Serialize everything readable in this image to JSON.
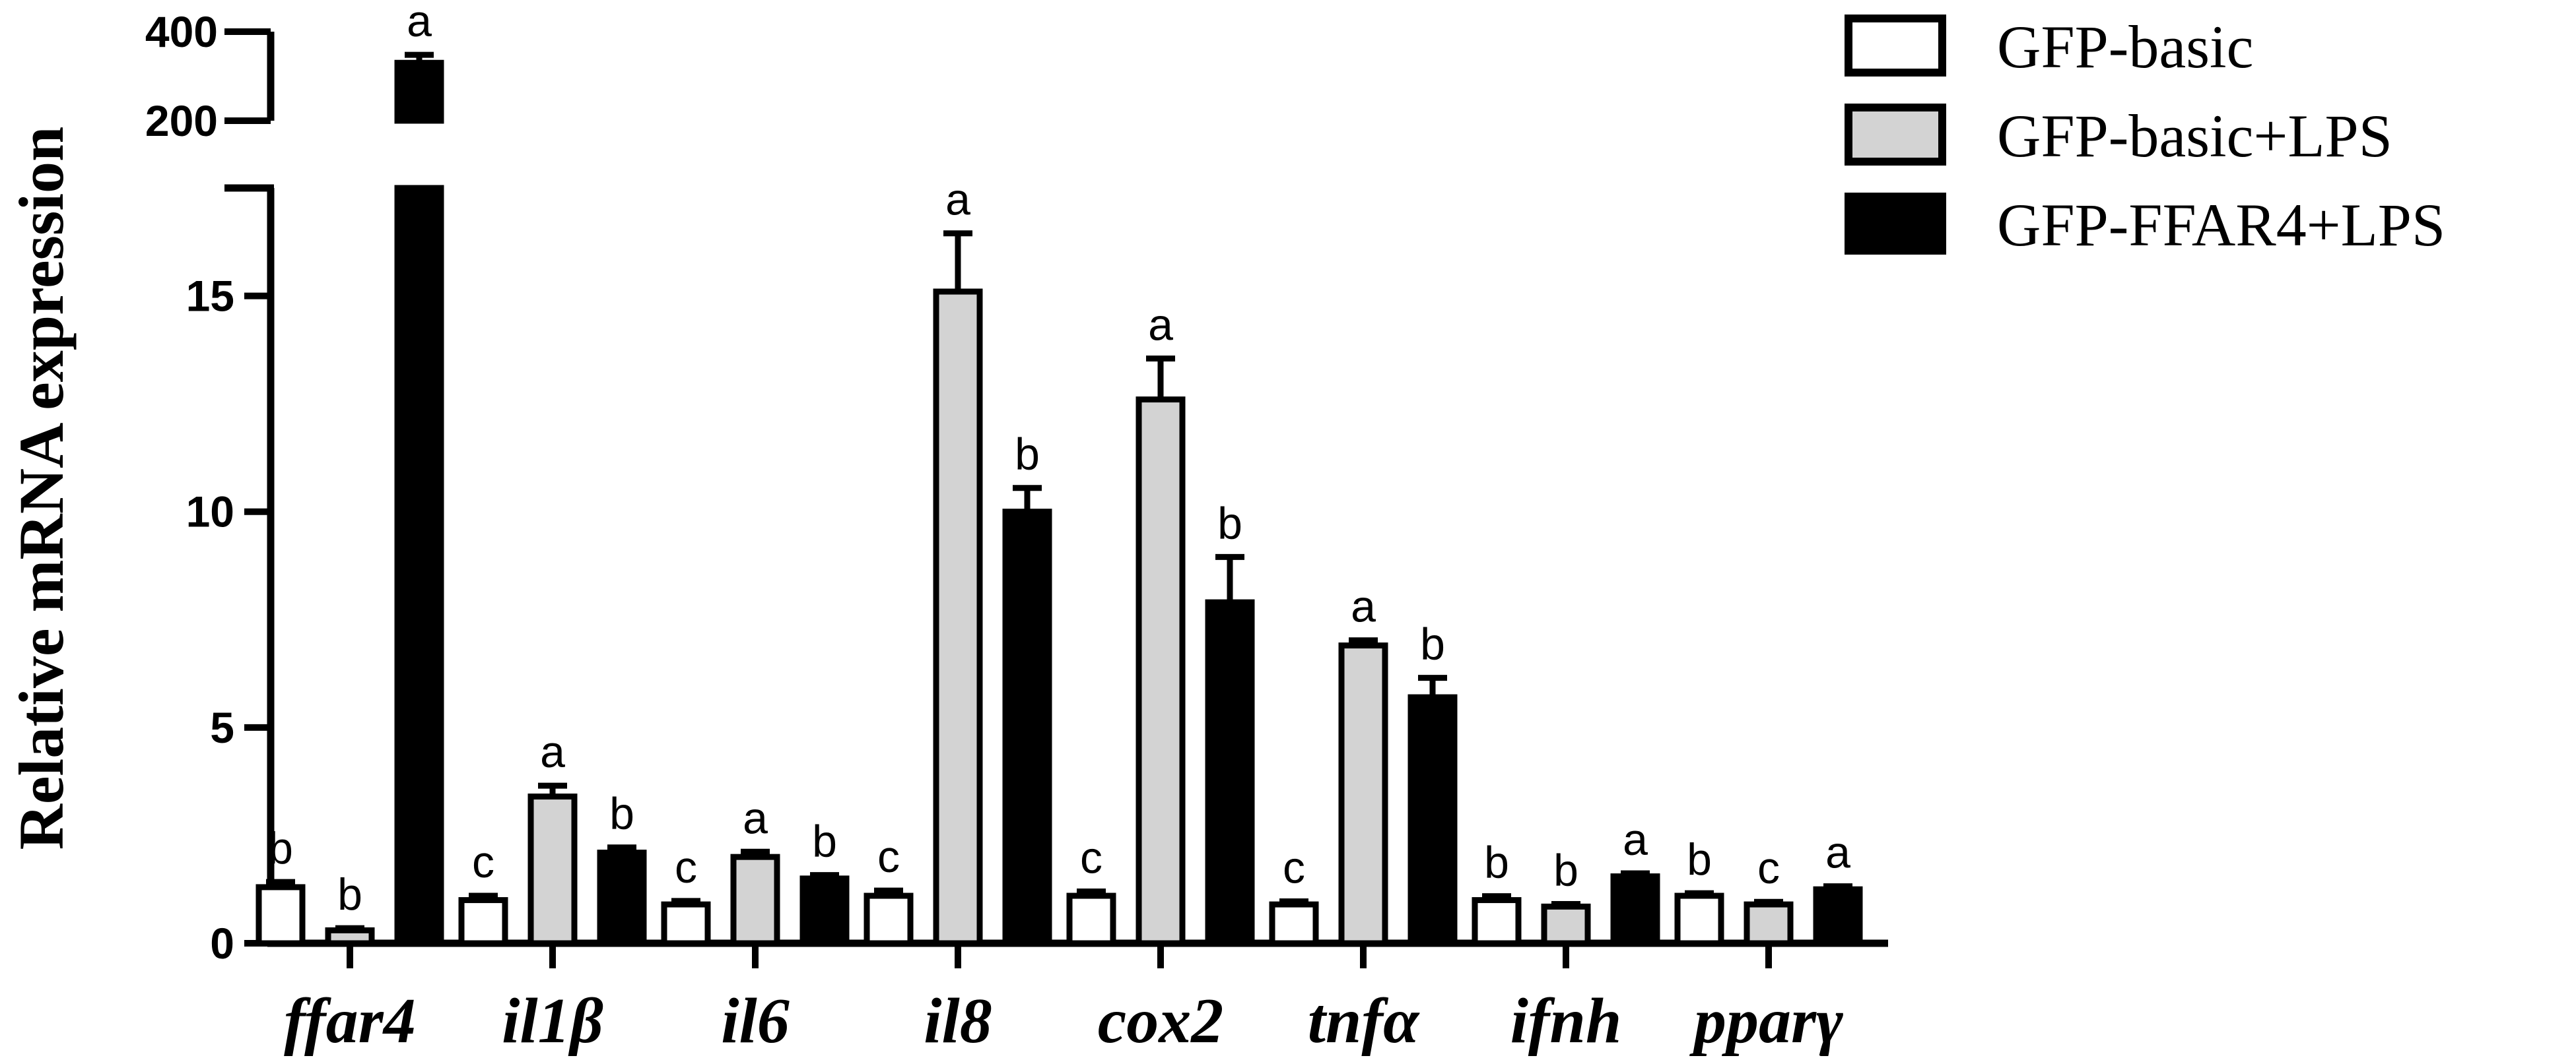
{
  "chart_data": {
    "type": "bar",
    "ylabel": "Relative  mRNA expression",
    "y_axis_break": true,
    "ylim_lower": [
      0,
      17.5
    ],
    "ylim_upper": [
      200,
      400
    ],
    "yticks_lower": [
      "0",
      "5",
      "10",
      "15"
    ],
    "yticks_upper": [
      "200",
      "400"
    ],
    "categories": [
      "ffar4",
      "il1β",
      "il6",
      "il8",
      "cox2",
      "tnfα",
      "ifnh",
      "pparγ"
    ],
    "series": [
      {
        "name": "GFP-basic",
        "fill": "#ffffff",
        "values": [
          1.3,
          1.0,
          0.9,
          1.1,
          1.1,
          0.9,
          1.0,
          1.1
        ],
        "errors": [
          0.12,
          0.1,
          0.08,
          0.12,
          0.1,
          0.07,
          0.09,
          0.06
        ],
        "letters": [
          "b",
          "c",
          "c",
          "c",
          "c",
          "c",
          "b",
          "b"
        ]
      },
      {
        "name": "GFP-basic+LPS",
        "fill": "#d3d3d3",
        "values": [
          0.3,
          3.4,
          2.0,
          15.1,
          12.6,
          6.9,
          0.85,
          0.9
        ],
        "errors": [
          0.05,
          0.25,
          0.12,
          1.35,
          0.95,
          0.12,
          0.06,
          0.06
        ],
        "letters": [
          "b",
          "a",
          "a",
          "a",
          "a",
          "a",
          "b",
          "c"
        ]
      },
      {
        "name": "GFP-FFAR4+LPS",
        "fill": "#000000",
        "values": [
          330,
          2.1,
          1.5,
          10.0,
          7.9,
          5.7,
          1.55,
          1.25
        ],
        "errors": [
          18,
          0.12,
          0.08,
          0.55,
          1.05,
          0.45,
          0.07,
          0.07
        ],
        "letters": [
          "a",
          "b",
          "b",
          "b",
          "b",
          "b",
          "a",
          "a"
        ]
      }
    ],
    "legend_position": "top-right"
  }
}
